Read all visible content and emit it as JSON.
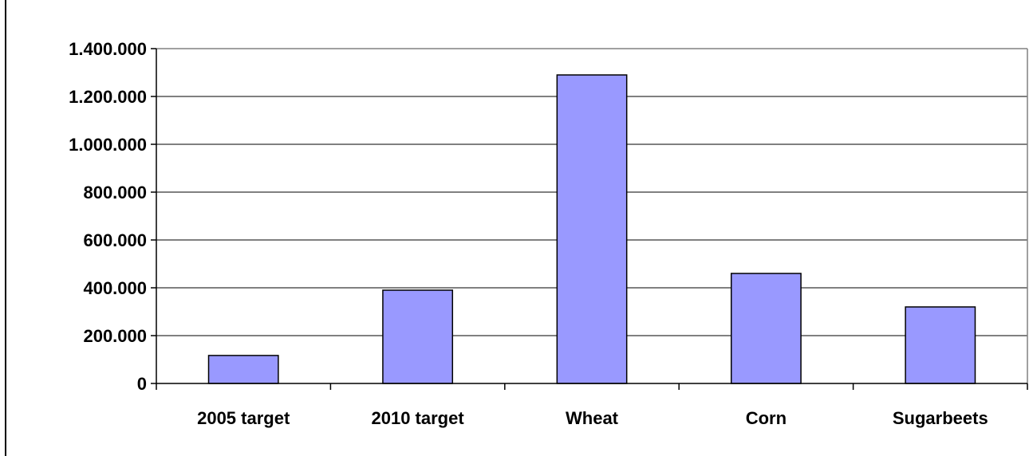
{
  "chart_data": {
    "type": "bar",
    "categories": [
      "2005 target",
      "2010 target",
      "Wheat",
      "Corn",
      "Sugarbeets"
    ],
    "values": [
      117000,
      390000,
      1290000,
      460000,
      320000
    ],
    "ylim": [
      0,
      1400000
    ],
    "yticks": [
      0,
      200000,
      400000,
      600000,
      800000,
      1000000,
      1200000,
      1400000
    ],
    "ytick_labels": [
      "0",
      "200.000",
      "400.000",
      "600.000",
      "800.000",
      "1.000.000",
      "1.200.000",
      "1.400.000"
    ],
    "title": "",
    "xlabel": "",
    "ylabel": "",
    "grid": true,
    "bar_color": "#9999ff",
    "bar_edge_color": "#000000",
    "plot_border_color": "#808080"
  }
}
